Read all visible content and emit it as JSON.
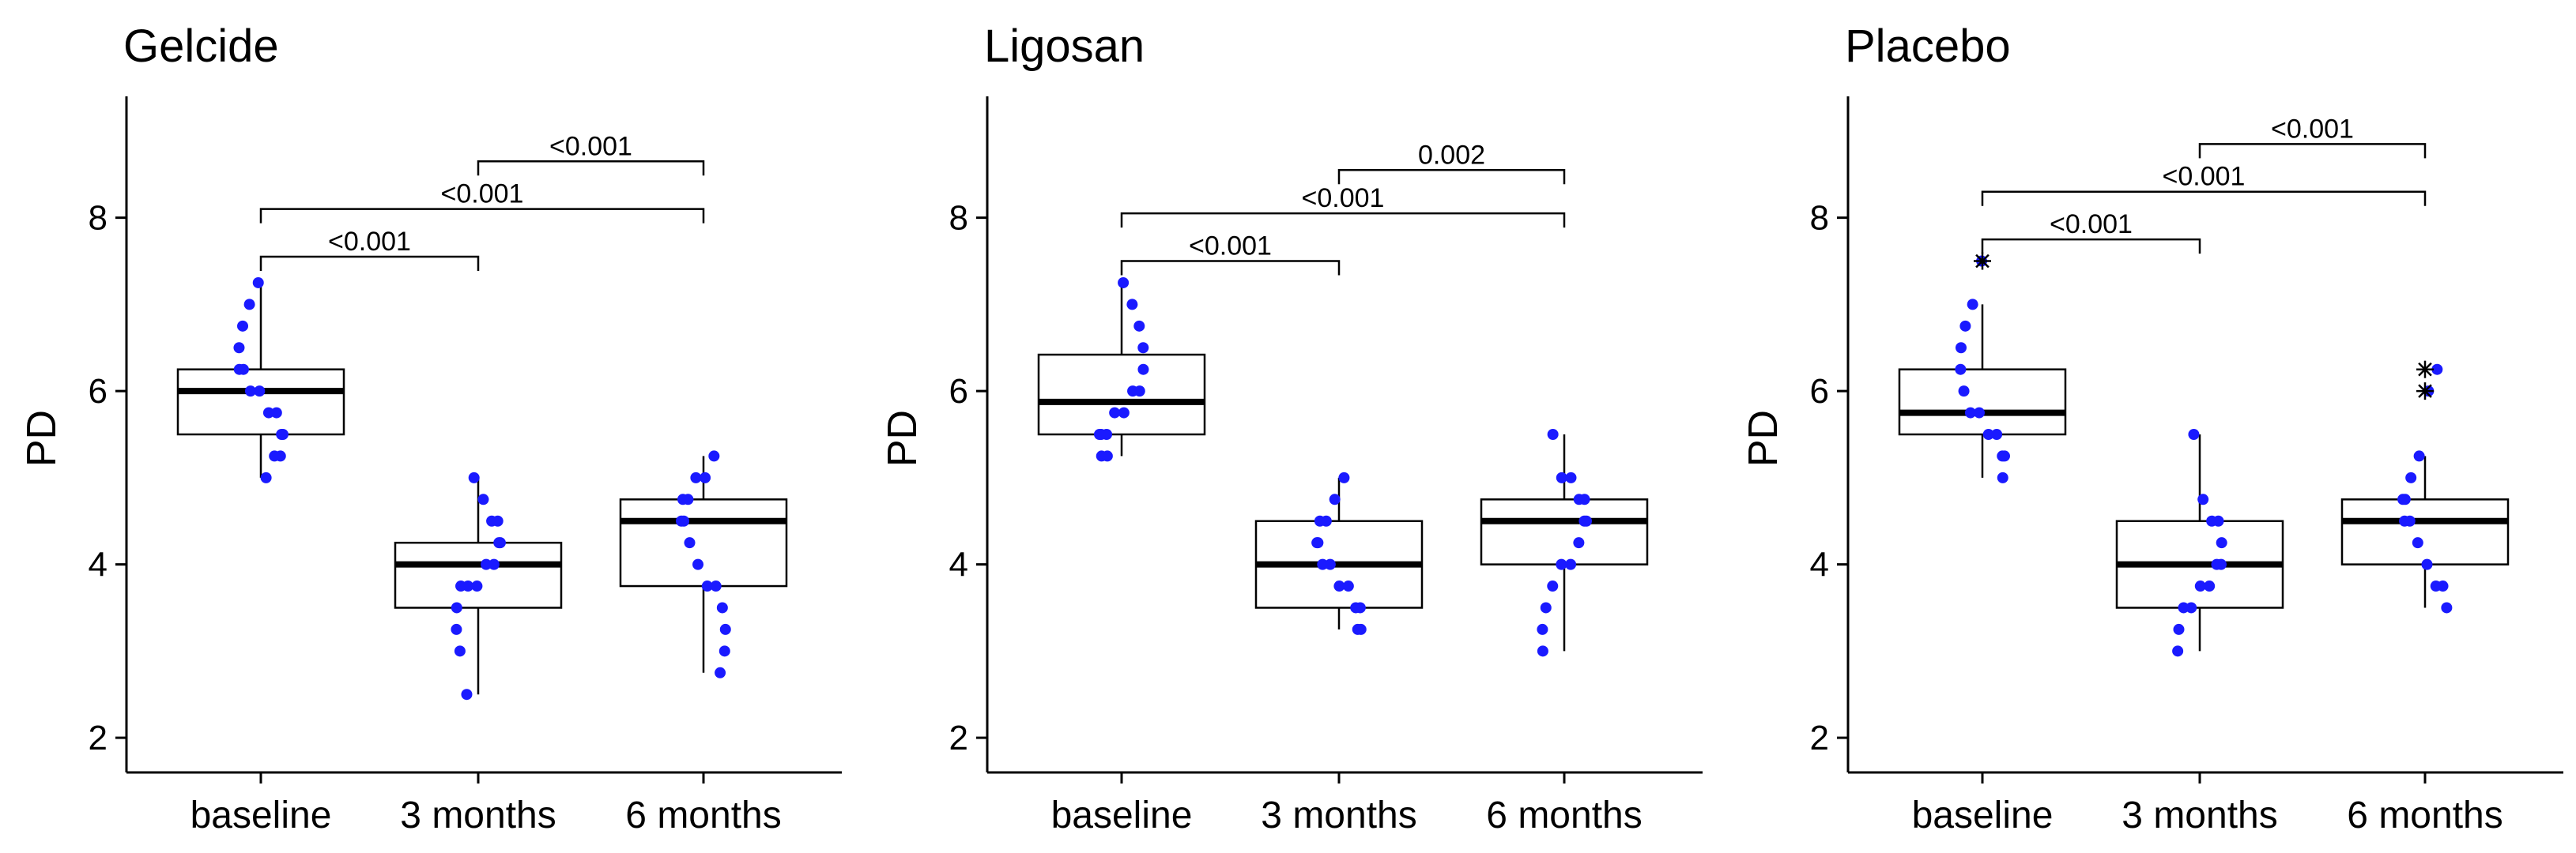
{
  "chart_data": [
    {
      "type": "box",
      "title": "Gelcide",
      "xlabel": "",
      "ylabel": "PD",
      "ylim": [
        1.6,
        9.4
      ],
      "yticks": [
        2,
        4,
        6,
        8
      ],
      "grid": false,
      "categories": [
        "baseline",
        "3 months",
        "6 months"
      ],
      "boxes": [
        {
          "whisker_low": 5.0,
          "q1": 5.5,
          "median": 6.0,
          "q3": 6.25,
          "whisker_high": 7.25
        },
        {
          "whisker_low": 2.5,
          "q1": 3.5,
          "median": 4.0,
          "q3": 4.25,
          "whisker_high": 5.0
        },
        {
          "whisker_low": 2.75,
          "q1": 3.75,
          "median": 4.5,
          "q3": 4.75,
          "whisker_high": 5.25
        }
      ],
      "points": [
        [
          7.25,
          7.0,
          6.75,
          6.5,
          6.25,
          6.25,
          6.0,
          6.0,
          5.75,
          5.75,
          5.5,
          5.5,
          5.25,
          5.25,
          5.0
        ],
        [
          5.0,
          4.75,
          4.5,
          4.5,
          4.25,
          4.25,
          4.0,
          4.0,
          3.75,
          3.75,
          3.75,
          3.5,
          3.25,
          3.0,
          2.5
        ],
        [
          5.25,
          5.0,
          5.0,
          4.75,
          4.75,
          4.5,
          4.5,
          4.25,
          4.0,
          3.75,
          3.75,
          3.5,
          3.25,
          3.0,
          2.75
        ]
      ],
      "outliers": [
        [],
        [],
        []
      ],
      "comparisons": [
        {
          "from": 0,
          "to": 1,
          "y": 7.55,
          "label": "<0.001"
        },
        {
          "from": 0,
          "to": 2,
          "y": 8.1,
          "label": "<0.001"
        },
        {
          "from": 1,
          "to": 2,
          "y": 8.65,
          "label": "<0.001"
        }
      ]
    },
    {
      "type": "box",
      "title": "Ligosan",
      "xlabel": "",
      "ylabel": "PD",
      "ylim": [
        1.6,
        9.4
      ],
      "yticks": [
        2,
        4,
        6,
        8
      ],
      "grid": false,
      "categories": [
        "baseline",
        "3 months",
        "6 months"
      ],
      "boxes": [
        {
          "whisker_low": 5.25,
          "q1": 5.5,
          "median": 5.875,
          "q3": 6.42,
          "whisker_high": 7.25
        },
        {
          "whisker_low": 3.25,
          "q1": 3.5,
          "median": 4.0,
          "q3": 4.5,
          "whisker_high": 5.0
        },
        {
          "whisker_low": 3.0,
          "q1": 4.0,
          "median": 4.5,
          "q3": 4.75,
          "whisker_high": 5.5
        }
      ],
      "points": [
        [
          7.25,
          7.0,
          6.75,
          6.5,
          6.25,
          6.0,
          6.0,
          5.75,
          5.75,
          5.5,
          5.5,
          5.5,
          5.25,
          5.25
        ],
        [
          5.0,
          4.75,
          4.5,
          4.5,
          4.25,
          4.25,
          4.0,
          4.0,
          3.75,
          3.75,
          3.5,
          3.5,
          3.25,
          3.25
        ],
        [
          5.5,
          5.0,
          5.0,
          4.75,
          4.75,
          4.5,
          4.5,
          4.25,
          4.0,
          4.0,
          3.75,
          3.5,
          3.25,
          3.0
        ]
      ],
      "outliers": [
        [],
        [],
        []
      ],
      "comparisons": [
        {
          "from": 0,
          "to": 1,
          "y": 7.5,
          "label": "<0.001"
        },
        {
          "from": 0,
          "to": 2,
          "y": 8.05,
          "label": "<0.001"
        },
        {
          "from": 1,
          "to": 2,
          "y": 8.55,
          "label": "0.002"
        }
      ]
    },
    {
      "type": "box",
      "title": "Placebo",
      "xlabel": "",
      "ylabel": "PD",
      "ylim": [
        1.6,
        9.4
      ],
      "yticks": [
        2,
        4,
        6,
        8
      ],
      "grid": false,
      "categories": [
        "baseline",
        "3 months",
        "6 months"
      ],
      "boxes": [
        {
          "whisker_low": 5.0,
          "q1": 5.5,
          "median": 5.75,
          "q3": 6.25,
          "whisker_high": 7.0
        },
        {
          "whisker_low": 3.0,
          "q1": 3.5,
          "median": 4.0,
          "q3": 4.5,
          "whisker_high": 5.5
        },
        {
          "whisker_low": 3.5,
          "q1": 4.0,
          "median": 4.5,
          "q3": 4.75,
          "whisker_high": 5.25
        }
      ],
      "points": [
        [
          7.5,
          7.0,
          6.75,
          6.5,
          6.25,
          6.0,
          5.75,
          5.75,
          5.5,
          5.5,
          5.25,
          5.25,
          5.0
        ],
        [
          5.5,
          4.75,
          4.5,
          4.5,
          4.25,
          4.0,
          4.0,
          3.75,
          3.75,
          3.5,
          3.5,
          3.25,
          3.0
        ],
        [
          6.25,
          6.0,
          5.25,
          5.0,
          4.75,
          4.75,
          4.5,
          4.5,
          4.25,
          4.0,
          3.75,
          3.75,
          3.5
        ]
      ],
      "outliers": [
        [
          7.5
        ],
        [],
        [
          6.25,
          6.0
        ]
      ],
      "comparisons": [
        {
          "from": 0,
          "to": 1,
          "y": 7.75,
          "label": "<0.001"
        },
        {
          "from": 0,
          "to": 2,
          "y": 8.3,
          "label": "<0.001"
        },
        {
          "from": 1,
          "to": 2,
          "y": 8.85,
          "label": "<0.001"
        }
      ]
    }
  ],
  "colors": {
    "points": "#1a1aff",
    "lines": "#000000",
    "background": "#ffffff"
  }
}
